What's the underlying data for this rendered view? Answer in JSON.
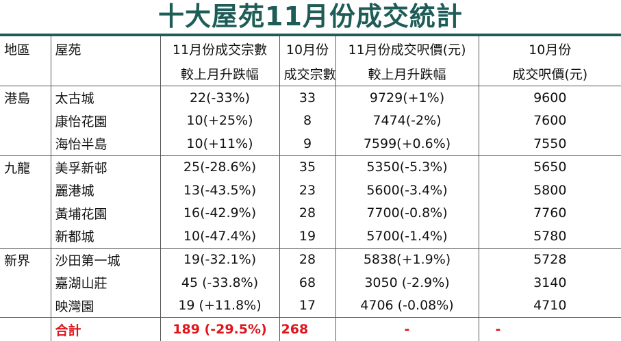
{
  "title": "十大屋苑11月份成交統計",
  "colors": {
    "title": "#1d5c57",
    "total": "#e0141b",
    "rule": "#1d5c57"
  },
  "headers": {
    "region": "地區",
    "estate": "屋苑",
    "nov_tx_line1": "11月份成交宗數",
    "nov_tx_line2": "較上月升跌幅",
    "oct_tx_line1": "10月份",
    "oct_tx_line2": "成交宗數",
    "nov_psf_line1": "11月份成交呎價(元)",
    "nov_psf_line2": "較上月升跌幅",
    "oct_psf_line1": "10月份",
    "oct_psf_line2": "成交呎價(元)"
  },
  "rows": [
    {
      "region": "港島",
      "estate": "太古城",
      "nov_tx": "22(-33%)",
      "oct_tx": "33",
      "nov_psf": "9729(+1%)",
      "oct_psf": "9600"
    },
    {
      "region": "",
      "estate": "康怡花園",
      "nov_tx": "10(+25%)",
      "oct_tx": "8",
      "nov_psf": "7474(-2%)",
      "oct_psf": "7600"
    },
    {
      "region": "",
      "estate": "海怡半島",
      "nov_tx": "10(+11%)",
      "oct_tx": "9",
      "nov_psf": "7599(+0.6%)",
      "oct_psf": "7550"
    },
    {
      "region": "九龍",
      "estate": "美孚新邨",
      "nov_tx": "25(-28.6%)",
      "oct_tx": "35",
      "nov_psf": "5350(-5.3%)",
      "oct_psf": "5650"
    },
    {
      "region": "",
      "estate": "麗港城",
      "nov_tx": "13(-43.5%)",
      "oct_tx": "23",
      "nov_psf": "5600(-3.4%)",
      "oct_psf": "5800"
    },
    {
      "region": "",
      "estate": "黃埔花園",
      "nov_tx": "16(-42.9%)",
      "oct_tx": "28",
      "nov_psf": "7700(-0.8%)",
      "oct_psf": "7760"
    },
    {
      "region": "",
      "estate": "新都城",
      "nov_tx": "10(-47.4%)",
      "oct_tx": "19",
      "nov_psf": "5700(-1.4%)",
      "oct_psf": "5780"
    },
    {
      "region": "新界",
      "estate": "沙田第一城",
      "nov_tx": "19(-32.1%)",
      "oct_tx": "28",
      "nov_psf": "5838(+1.9%)",
      "oct_psf": "5728"
    },
    {
      "region": "",
      "estate": "嘉湖山莊",
      "nov_tx": "45 (-33.8%)",
      "oct_tx": "68",
      "nov_psf": "3050 (-2.9%)",
      "oct_psf": "3140"
    },
    {
      "region": "",
      "estate": "映灣園",
      "nov_tx": "19 (+11.8%)",
      "oct_tx": "17",
      "nov_psf": "4706 (-0.08%)",
      "oct_psf": "4710"
    }
  ],
  "total": {
    "label": "合計",
    "nov_tx": "189 (-29.5%)",
    "oct_tx": "268",
    "nov_psf": "-",
    "oct_psf": "-"
  }
}
